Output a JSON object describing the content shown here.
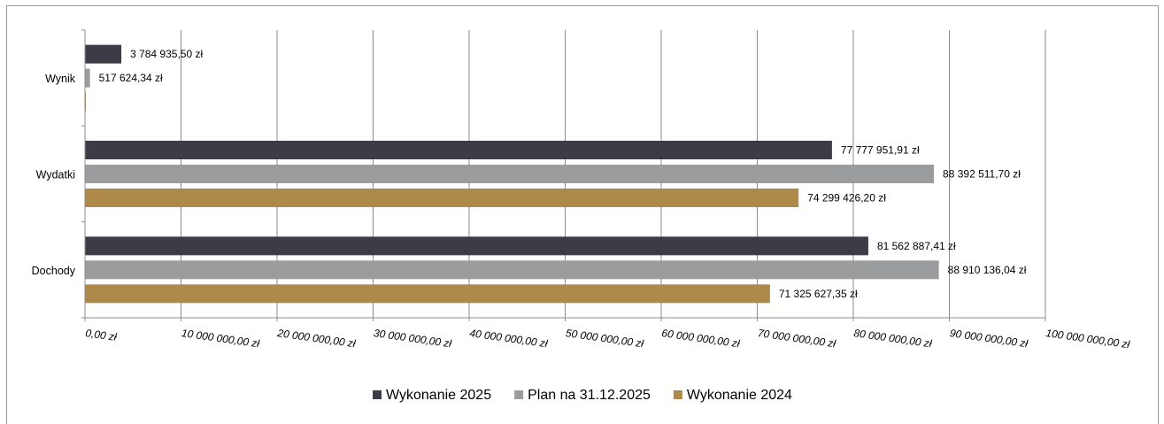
{
  "chart_data": {
    "type": "bar",
    "orientation": "horizontal",
    "categories": [
      "Dochody",
      "Wydatki",
      "Wynik"
    ],
    "series": [
      {
        "name": "Wykonanie 2025",
        "color": "#3b3c45",
        "values": [
          81562887.41,
          77777951.91,
          3784935.5
        ],
        "labels": [
          "81 562 887,41 zł",
          "77 777 951,91 zł",
          "3 784 935,50 zł"
        ]
      },
      {
        "name": "Plan na 31.12.2025",
        "color": "#9b9c9e",
        "values": [
          88910136.04,
          88392511.7,
          517624.34
        ],
        "labels": [
          "88 910 136,04 zł",
          "88 392 511,70 zł",
          "517 624,34 zł"
        ]
      },
      {
        "name": "Wykonanie 2024",
        "color": "#ad8a4a",
        "values": [
          71325627.35,
          74299426.2,
          0
        ],
        "labels": [
          "71 325 627,35 zł",
          "74 299 426,20 zł",
          ""
        ]
      }
    ],
    "xlim": [
      0,
      100000000
    ],
    "x_ticks": [
      "0,00 zł",
      "10 000 000,00 zł",
      "20 000 000,00 zł",
      "30 000 000,00 zł",
      "40 000 000,00 zł",
      "50 000 000,00 zł",
      "60 000 000,00 zł",
      "70 000 000,00 zł",
      "80 000 000,00 zł",
      "90 000 000,00 zł",
      "100 000 000,00 zł"
    ],
    "grid": true,
    "legend_position": "bottom"
  }
}
